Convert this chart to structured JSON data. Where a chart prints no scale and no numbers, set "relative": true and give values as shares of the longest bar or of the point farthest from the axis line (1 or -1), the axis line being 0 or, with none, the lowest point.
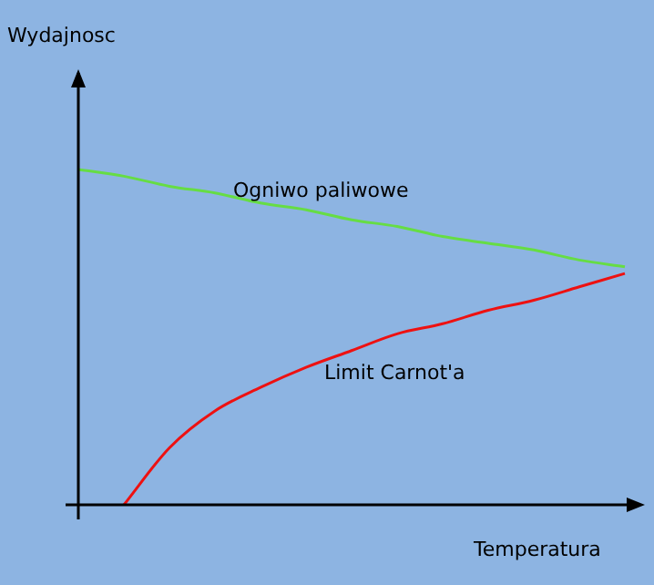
{
  "chart_data": {
    "type": "line",
    "relative": true,
    "xlabel": "Temperatura",
    "annotations": [
      "Wydajnosc"
    ],
    "legend": false,
    "marker": "none",
    "line_style": "solid",
    "categories": [
      null,
      null,
      null,
      null,
      null,
      null,
      null,
      null,
      null,
      null,
      null,
      null,
      null
    ],
    "series": [
      {
        "name": "Ogniwo paliwowe",
        "color": "#66dd44",
        "values": [
          1.0,
          0.98,
          0.95,
          0.93,
          0.9,
          0.88,
          0.85,
          0.83,
          0.8,
          0.78,
          0.76,
          0.73,
          0.71
        ]
      },
      {
        "name": "Limit Carnot'a",
        "color": "#ee1111",
        "values": [
          null,
          0,
          0.17,
          0.28,
          0.35,
          0.41,
          0.46,
          0.51,
          0.54,
          0.58,
          0.61,
          0.65,
          0.69
        ]
      }
    ]
  }
}
